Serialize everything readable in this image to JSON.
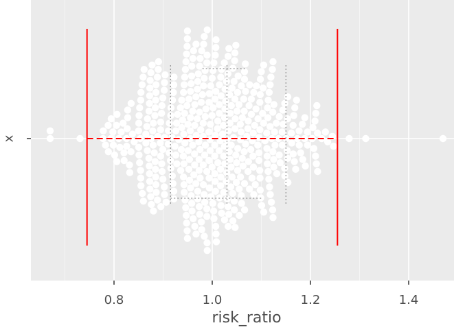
{
  "chart_data": {
    "type": "scatter",
    "subtype": "beeswarm",
    "xlabel": "risk_ratio",
    "ylabel": "",
    "y_category": "x",
    "xlim": [
      0.63,
      1.5
    ],
    "x_ticks": [
      0.8,
      1.0,
      1.2,
      1.4
    ],
    "x_tick_labels": [
      "0.8",
      "1.0",
      "1.2",
      "1.4"
    ],
    "grid": true,
    "legend": "none",
    "reference_lines": [
      {
        "name": "lower",
        "x": 0.745,
        "color": "#ff0000"
      },
      {
        "name": "upper",
        "x": 1.255,
        "color": "#ff0000"
      }
    ],
    "interval_segment": {
      "from": 0.745,
      "to": 1.255,
      "style": "dashed",
      "color": "#ff0000"
    },
    "dotted_segments": [
      {
        "orientation": "vertical",
        "x": 0.915
      },
      {
        "orientation": "vertical",
        "x": 1.03
      },
      {
        "orientation": "vertical",
        "x": 1.15
      },
      {
        "orientation": "horizontal",
        "from": 0.915,
        "to": 1.1,
        "level": "below"
      },
      {
        "orientation": "horizontal",
        "from": 0.98,
        "to": 1.07,
        "level": "above"
      }
    ],
    "point_count": 500,
    "point_color": "#ffffff",
    "distribution_summary": {
      "center": 1.0,
      "min": 0.67,
      "max": 1.47
    }
  },
  "colors": {
    "panel_background": "#ebebeb",
    "grid_major": "#ffffff",
    "grid_minor": "#f5f5f5",
    "accent_red": "#ff0000",
    "text": "#4d4d4d"
  }
}
